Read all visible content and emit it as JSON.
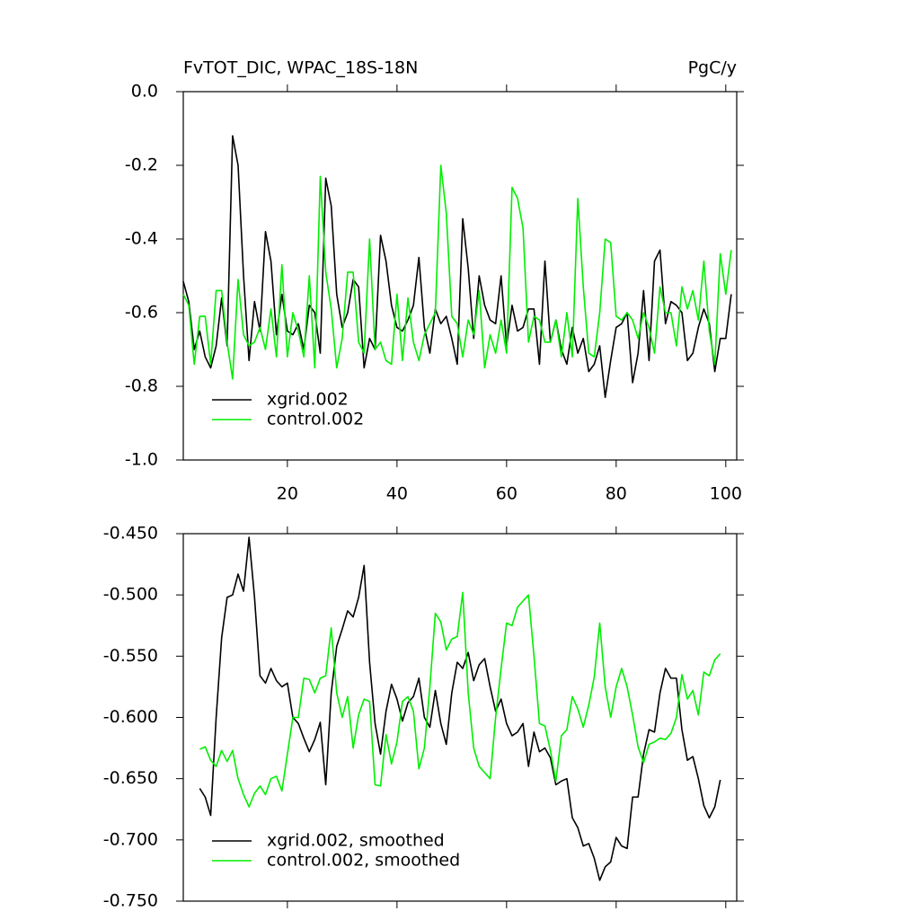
{
  "chart_data": [
    {
      "type": "line",
      "title": "FvTOT_DIC, WPAC_18S-18N",
      "units": "PgC/y",
      "x": [
        1,
        2,
        3,
        4,
        5,
        6,
        7,
        8,
        9,
        10,
        11,
        12,
        13,
        14,
        15,
        16,
        17,
        18,
        19,
        20,
        21,
        22,
        23,
        24,
        25,
        26,
        27,
        28,
        29,
        30,
        31,
        32,
        33,
        34,
        35,
        36,
        37,
        38,
        39,
        40,
        41,
        42,
        43,
        44,
        45,
        46,
        47,
        48,
        49,
        50,
        51,
        52,
        53,
        54,
        55,
        56,
        57,
        58,
        59,
        60,
        61,
        62,
        63,
        64,
        65,
        66,
        67,
        68,
        69,
        70,
        71,
        72,
        73,
        74,
        75,
        76,
        77,
        78,
        79,
        80,
        81,
        82,
        83,
        84,
        85,
        86,
        87,
        88,
        89,
        90,
        91,
        92,
        93,
        94,
        95,
        96,
        97,
        98,
        99,
        100,
        101
      ],
      "series": [
        {
          "name": "xgrid.002",
          "color": "#000000",
          "values": [
            -0.515,
            -0.57,
            -0.7,
            -0.65,
            -0.72,
            -0.75,
            -0.69,
            -0.56,
            -0.69,
            -0.12,
            -0.2,
            -0.5,
            -0.73,
            -0.57,
            -0.65,
            -0.38,
            -0.46,
            -0.66,
            -0.55,
            -0.65,
            -0.66,
            -0.63,
            -0.7,
            -0.58,
            -0.6,
            -0.71,
            -0.235,
            -0.31,
            -0.55,
            -0.64,
            -0.6,
            -0.51,
            -0.53,
            -0.75,
            -0.67,
            -0.7,
            -0.39,
            -0.46,
            -0.58,
            -0.64,
            -0.65,
            -0.62,
            -0.58,
            -0.45,
            -0.64,
            -0.71,
            -0.59,
            -0.63,
            -0.61,
            -0.67,
            -0.74,
            -0.345,
            -0.48,
            -0.67,
            -0.5,
            -0.58,
            -0.62,
            -0.63,
            -0.5,
            -0.69,
            -0.58,
            -0.65,
            -0.64,
            -0.59,
            -0.59,
            -0.74,
            -0.46,
            -0.68,
            -0.62,
            -0.7,
            -0.74,
            -0.64,
            -0.71,
            -0.67,
            -0.76,
            -0.74,
            -0.69,
            -0.83,
            -0.73,
            -0.64,
            -0.63,
            -0.6,
            -0.79,
            -0.71,
            -0.54,
            -0.73,
            -0.46,
            -0.43,
            -0.63,
            -0.57,
            -0.58,
            -0.6,
            -0.73,
            -0.71,
            -0.64,
            -0.59,
            -0.63,
            -0.76,
            -0.67,
            -0.67,
            -0.55
          ]
        },
        {
          "name": "control.002",
          "color": "#00ee00",
          "values": [
            -0.55,
            -0.58,
            -0.74,
            -0.61,
            -0.61,
            -0.74,
            -0.54,
            -0.54,
            -0.68,
            -0.78,
            -0.51,
            -0.66,
            -0.69,
            -0.68,
            -0.64,
            -0.7,
            -0.59,
            -0.72,
            -0.47,
            -0.72,
            -0.6,
            -0.65,
            -0.72,
            -0.5,
            -0.75,
            -0.23,
            -0.49,
            -0.59,
            -0.75,
            -0.67,
            -0.49,
            -0.49,
            -0.68,
            -0.71,
            -0.4,
            -0.7,
            -0.68,
            -0.73,
            -0.74,
            -0.55,
            -0.73,
            -0.56,
            -0.68,
            -0.73,
            -0.66,
            -0.63,
            -0.6,
            -0.2,
            -0.33,
            -0.61,
            -0.63,
            -0.72,
            -0.62,
            -0.66,
            -0.54,
            -0.75,
            -0.66,
            -0.71,
            -0.62,
            -0.71,
            -0.26,
            -0.29,
            -0.37,
            -0.68,
            -0.61,
            -0.62,
            -0.68,
            -0.68,
            -0.62,
            -0.72,
            -0.6,
            -0.72,
            -0.29,
            -0.53,
            -0.71,
            -0.72,
            -0.6,
            -0.4,
            -0.41,
            -0.61,
            -0.62,
            -0.6,
            -0.62,
            -0.67,
            -0.6,
            -0.64,
            -0.71,
            -0.53,
            -0.6,
            -0.6,
            -0.69,
            -0.53,
            -0.59,
            -0.54,
            -0.62,
            -0.46,
            -0.65,
            -0.74,
            -0.44,
            -0.55,
            -0.43
          ]
        }
      ],
      "xlim": [
        1,
        102
      ],
      "ylim": [
        -1.0,
        0.0
      ],
      "xticks": [
        20,
        40,
        60,
        80,
        100
      ],
      "yticks": [
        {
          "value": -1.0,
          "label": "-1.0"
        },
        -0.8,
        -0.6,
        -0.4,
        -0.2,
        {
          "value": 0.0,
          "label": "0.0"
        }
      ],
      "legend": "lower left"
    },
    {
      "type": "line",
      "x": [
        4,
        5,
        6,
        7,
        8,
        9,
        10,
        11,
        12,
        13,
        14,
        15,
        16,
        17,
        18,
        19,
        20,
        21,
        22,
        23,
        24,
        25,
        26,
        27,
        28,
        29,
        30,
        31,
        32,
        33,
        34,
        35,
        36,
        37,
        38,
        39,
        40,
        41,
        42,
        43,
        44,
        45,
        46,
        47,
        48,
        49,
        50,
        51,
        52,
        53,
        54,
        55,
        56,
        57,
        58,
        59,
        60,
        61,
        62,
        63,
        64,
        65,
        66,
        67,
        68,
        69,
        70,
        71,
        72,
        73,
        74,
        75,
        76,
        77,
        78,
        79,
        80,
        81,
        82,
        83,
        84,
        85,
        86,
        87,
        88,
        89,
        90,
        91,
        92,
        93,
        94,
        95,
        96,
        97,
        98,
        99
      ],
      "series": [
        {
          "name": "xgrid.002, smoothed",
          "color": "#000000",
          "values": [
            -0.658,
            -0.665,
            -0.68,
            -0.6,
            -0.535,
            -0.502,
            -0.5,
            -0.483,
            -0.497,
            -0.453,
            -0.502,
            -0.566,
            -0.572,
            -0.56,
            -0.57,
            -0.575,
            -0.572,
            -0.6,
            -0.605,
            -0.617,
            -0.628,
            -0.618,
            -0.604,
            -0.655,
            -0.58,
            -0.542,
            -0.528,
            -0.513,
            -0.518,
            -0.502,
            -0.476,
            -0.555,
            -0.605,
            -0.63,
            -0.595,
            -0.573,
            -0.585,
            -0.603,
            -0.588,
            -0.583,
            -0.568,
            -0.6,
            -0.608,
            -0.578,
            -0.605,
            -0.622,
            -0.58,
            -0.555,
            -0.56,
            -0.547,
            -0.57,
            -0.557,
            -0.552,
            -0.575,
            -0.595,
            -0.585,
            -0.605,
            -0.615,
            -0.612,
            -0.605,
            -0.64,
            -0.612,
            -0.628,
            -0.625,
            -0.633,
            -0.655,
            -0.652,
            -0.65,
            -0.682,
            -0.69,
            -0.705,
            -0.703,
            -0.715,
            -0.733,
            -0.722,
            -0.718,
            -0.698,
            -0.705,
            -0.707,
            -0.665,
            -0.665,
            -0.63,
            -0.61,
            -0.612,
            -0.58,
            -0.56,
            -0.568,
            -0.568,
            -0.61,
            -0.635,
            -0.632,
            -0.65,
            -0.672,
            -0.682,
            -0.673,
            -0.651
          ]
        },
        {
          "name": "control.002, smoothed",
          "color": "#00ee00",
          "values": [
            -0.626,
            -0.624,
            -0.635,
            -0.64,
            -0.627,
            -0.636,
            -0.627,
            -0.65,
            -0.663,
            -0.673,
            -0.662,
            -0.656,
            -0.663,
            -0.65,
            -0.648,
            -0.66,
            -0.63,
            -0.6,
            -0.6,
            -0.568,
            -0.569,
            -0.58,
            -0.568,
            -0.566,
            -0.527,
            -0.58,
            -0.6,
            -0.583,
            -0.625,
            -0.598,
            -0.585,
            -0.587,
            -0.655,
            -0.656,
            -0.614,
            -0.638,
            -0.62,
            -0.587,
            -0.583,
            -0.595,
            -0.642,
            -0.625,
            -0.575,
            -0.515,
            -0.522,
            -0.545,
            -0.536,
            -0.534,
            -0.498,
            -0.58,
            -0.625,
            -0.64,
            -0.645,
            -0.65,
            -0.6,
            -0.56,
            -0.523,
            -0.525,
            -0.51,
            -0.505,
            -0.5,
            -0.55,
            -0.605,
            -0.607,
            -0.627,
            -0.652,
            -0.615,
            -0.61,
            -0.583,
            -0.593,
            -0.608,
            -0.59,
            -0.567,
            -0.523,
            -0.575,
            -0.6,
            -0.575,
            -0.56,
            -0.575,
            -0.598,
            -0.624,
            -0.637,
            -0.622,
            -0.62,
            -0.617,
            -0.618,
            -0.613,
            -0.6,
            -0.565,
            -0.585,
            -0.578,
            -0.598,
            -0.563,
            -0.566,
            -0.553,
            -0.548
          ]
        }
      ],
      "xlim": [
        1,
        102
      ],
      "ylim": [
        -0.75,
        -0.45
      ],
      "xticks": [
        20,
        40,
        60,
        80,
        100
      ],
      "xtick_labels": false,
      "yticks": [
        {
          "value": -0.75,
          "label": "-0.750"
        },
        {
          "value": -0.7,
          "label": "-0.700"
        },
        {
          "value": -0.65,
          "label": "-0.650"
        },
        {
          "value": -0.6,
          "label": "-0.600"
        },
        {
          "value": -0.55,
          "label": "-0.550"
        },
        {
          "value": -0.5,
          "label": "-0.500"
        },
        {
          "value": -0.45,
          "label": "-0.450"
        }
      ],
      "legend": "lower left"
    }
  ]
}
